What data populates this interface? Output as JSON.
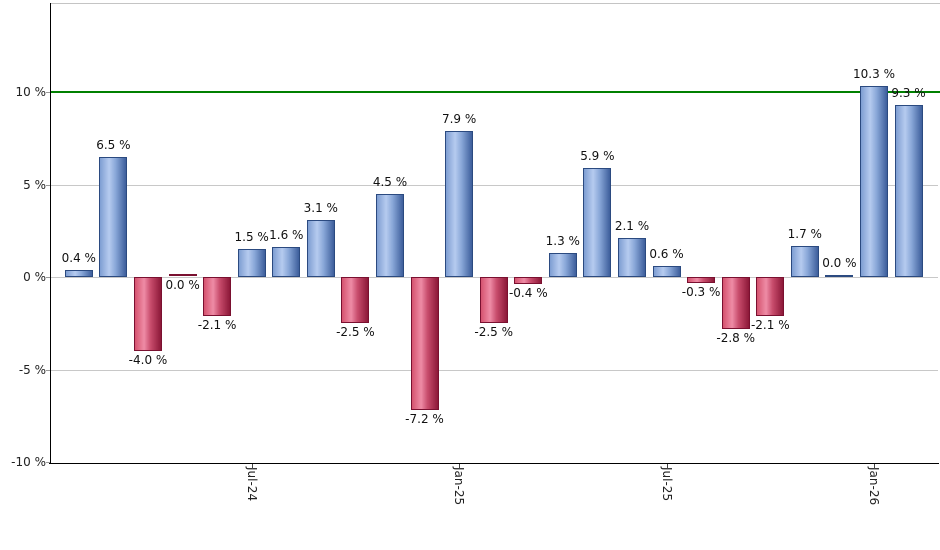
{
  "chart_data": {
    "type": "bar",
    "bars": [
      {
        "value": 0.4,
        "label": "0.4 %",
        "color": "pos"
      },
      {
        "value": 6.5,
        "label": "6.5 %",
        "color": "pos"
      },
      {
        "value": -4.0,
        "label": "-4.0 %",
        "color": "neg"
      },
      {
        "value": 0.0,
        "label": "0.0 %",
        "color": "neg"
      },
      {
        "value": -2.1,
        "label": "-2.1 %",
        "color": "neg"
      },
      {
        "value": 1.5,
        "label": "1.5 %",
        "color": "pos"
      },
      {
        "value": 1.6,
        "label": "1.6 %",
        "color": "pos"
      },
      {
        "value": 3.1,
        "label": "3.1 %",
        "color": "pos"
      },
      {
        "value": -2.5,
        "label": "-2.5 %",
        "color": "neg"
      },
      {
        "value": 4.5,
        "label": "4.5 %",
        "color": "pos"
      },
      {
        "value": -7.2,
        "label": "-7.2 %",
        "color": "neg"
      },
      {
        "value": 7.9,
        "label": "7.9 %",
        "color": "pos"
      },
      {
        "value": -2.5,
        "label": "-2.5 %",
        "color": "neg"
      },
      {
        "value": -0.4,
        "label": "-0.4 %",
        "color": "neg"
      },
      {
        "value": 1.3,
        "label": "1.3 %",
        "color": "pos"
      },
      {
        "value": 5.9,
        "label": "5.9 %",
        "color": "pos"
      },
      {
        "value": 2.1,
        "label": "2.1 %",
        "color": "pos"
      },
      {
        "value": 0.6,
        "label": "0.6 %",
        "color": "pos"
      },
      {
        "value": -0.3,
        "label": "-0.3 %",
        "color": "neg"
      },
      {
        "value": -2.8,
        "label": "-2.8 %",
        "color": "neg"
      },
      {
        "value": -2.1,
        "label": "-2.1 %",
        "color": "neg"
      },
      {
        "value": 1.7,
        "label": "1.7 %",
        "color": "pos"
      },
      {
        "value": 0.0,
        "label": "0.0 %",
        "color": "pos"
      },
      {
        "value": 10.3,
        "label": "10.3 %",
        "color": "pos"
      },
      {
        "value": 9.3,
        "label": "9.3 %",
        "color": "pos"
      }
    ],
    "x_ticks": [
      {
        "label": "Jul-24",
        "index": 5
      },
      {
        "label": "Jan-25",
        "index": 11
      },
      {
        "label": "Jul-25",
        "index": 17
      },
      {
        "label": "Jan-26",
        "index": 23
      }
    ],
    "y_ticks": [
      {
        "label": "10 %",
        "value": 10
      },
      {
        "label": "5 %",
        "value": 5
      },
      {
        "label": "0 %",
        "value": 0
      },
      {
        "label": "-5 %",
        "value": -5
      },
      {
        "label": "-10 %",
        "value": -10
      }
    ],
    "y_gridline_values": [
      5,
      0,
      -5
    ],
    "reference_line": {
      "value": 10,
      "color": "#008000"
    },
    "ylim": [
      -10,
      14.8
    ],
    "grid": true,
    "legend": "none",
    "colors": {
      "positive_edge": "#2b4a80",
      "positive_stops": [
        "#7e9ed2",
        "#b6cbef",
        "#89a7d8",
        "#3d5e9b"
      ],
      "negative_edge": "#7a1030",
      "negative_stops": [
        "#d5536f",
        "#ee8ca6",
        "#c84c6c",
        "#8c1838"
      ],
      "grid": "#c8c8c8",
      "plot_border": "#c4c4c4",
      "axis": "#000000",
      "bar_label_text": "#111111",
      "tick_label_text": "#222222"
    }
  }
}
